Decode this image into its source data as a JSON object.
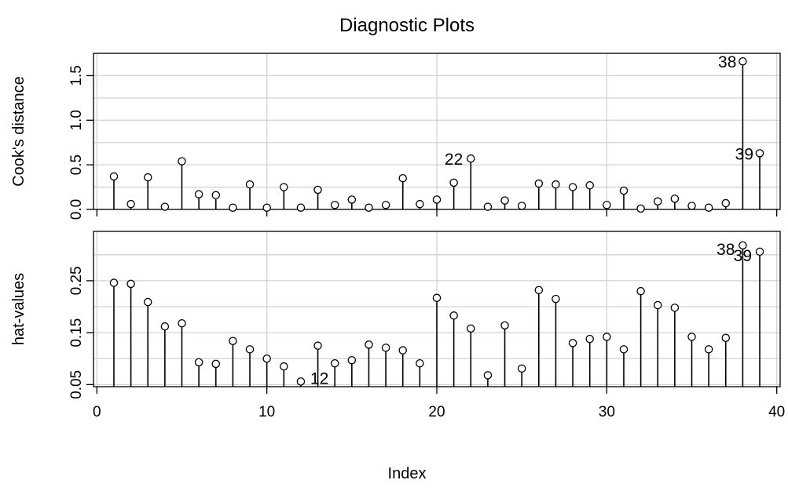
{
  "chart_data": [
    {
      "type": "scatter",
      "title": "Diagnostic Plots",
      "ylabel": "Cook's distance",
      "xlabel": "",
      "xlim": [
        -0.2,
        40.2
      ],
      "ylim": [
        0,
        1.75
      ],
      "x_ticks": [
        0,
        10,
        20,
        30,
        40
      ],
      "y_ticks": [
        0.0,
        0.5,
        1.0,
        1.5
      ],
      "y_tick_labels": [
        "0.0",
        "0.5",
        "1.0",
        "1.5"
      ],
      "grid": true,
      "x": [
        1,
        2,
        3,
        4,
        5,
        6,
        7,
        8,
        9,
        10,
        11,
        12,
        13,
        14,
        15,
        16,
        17,
        18,
        19,
        20,
        21,
        22,
        23,
        24,
        25,
        26,
        27,
        28,
        29,
        30,
        31,
        32,
        33,
        34,
        35,
        36,
        37,
        38,
        39
      ],
      "y": [
        0.37,
        0.06,
        0.36,
        0.03,
        0.54,
        0.17,
        0.16,
        0.02,
        0.28,
        0.02,
        0.25,
        0.02,
        0.22,
        0.05,
        0.11,
        0.02,
        0.05,
        0.35,
        0.06,
        0.11,
        0.3,
        0.57,
        0.03,
        0.1,
        0.04,
        0.29,
        0.28,
        0.25,
        0.27,
        0.05,
        0.21,
        0.01,
        0.09,
        0.12,
        0.04,
        0.02,
        0.07,
        1.66,
        0.63
      ],
      "annotations": [
        {
          "index": 38,
          "text": "38"
        },
        {
          "index": 39,
          "text": "39"
        },
        {
          "index": 22,
          "text": "22"
        }
      ]
    },
    {
      "type": "scatter",
      "xlabel": "Index",
      "ylabel": "hat-values",
      "xlim": [
        -0.2,
        40.2
      ],
      "ylim": [
        0.046,
        0.345
      ],
      "x_ticks": [
        0,
        10,
        20,
        30,
        40
      ],
      "x_tick_labels": [
        "0",
        "10",
        "20",
        "30",
        "40"
      ],
      "y_ticks": [
        0.05,
        0.15,
        0.25
      ],
      "y_tick_labels": [
        "0.05",
        "0.15",
        "0.25"
      ],
      "grid": true,
      "x": [
        1,
        2,
        3,
        4,
        5,
        6,
        7,
        8,
        9,
        10,
        11,
        12,
        13,
        14,
        15,
        16,
        17,
        18,
        19,
        20,
        21,
        22,
        23,
        24,
        25,
        26,
        27,
        28,
        29,
        30,
        31,
        32,
        33,
        34,
        35,
        36,
        37,
        38,
        39
      ],
      "y": [
        0.246,
        0.244,
        0.209,
        0.162,
        0.168,
        0.093,
        0.09,
        0.134,
        0.118,
        0.1,
        0.085,
        0.056,
        0.125,
        0.091,
        0.097,
        0.127,
        0.121,
        0.116,
        0.091,
        0.217,
        0.183,
        0.158,
        0.068,
        0.164,
        0.081,
        0.232,
        0.215,
        0.13,
        0.138,
        0.142,
        0.118,
        0.23,
        0.203,
        0.198,
        0.142,
        0.118,
        0.14,
        0.318,
        0.306
      ],
      "annotations": [
        {
          "index": 38,
          "text": "38"
        },
        {
          "index": 39,
          "text": "39"
        },
        {
          "index": 12,
          "text": "12"
        }
      ]
    }
  ]
}
